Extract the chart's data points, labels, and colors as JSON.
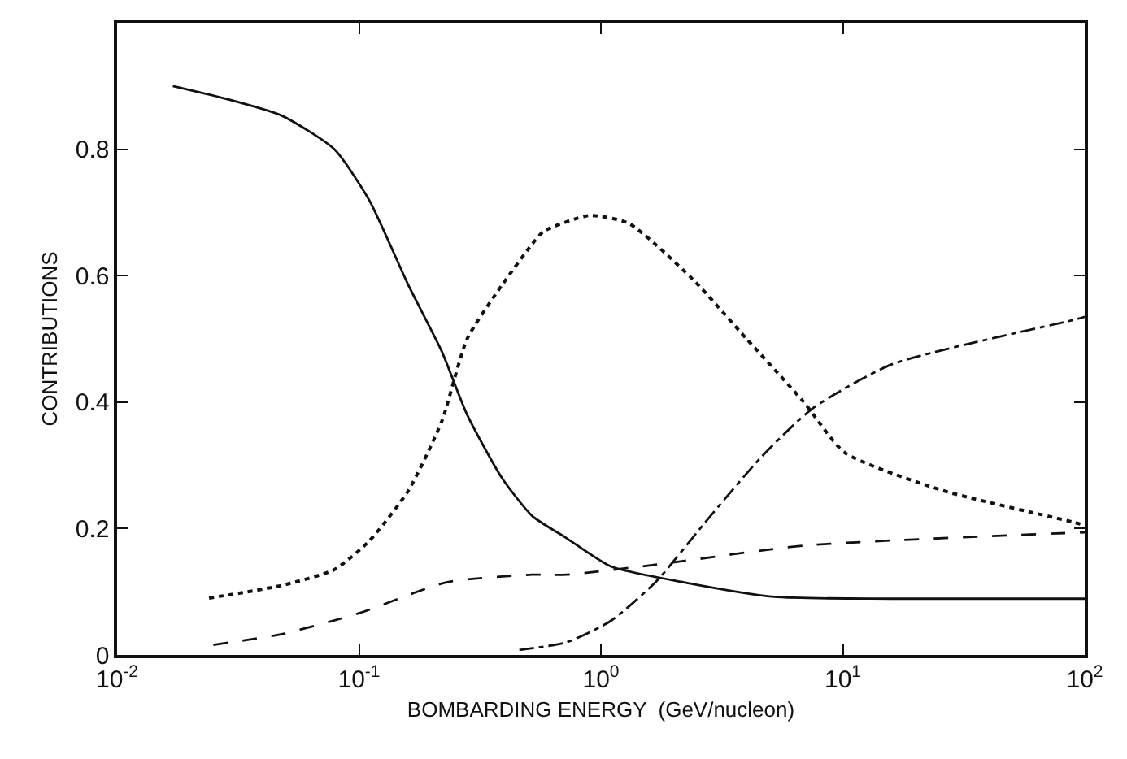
{
  "chart_data": {
    "type": "line",
    "xlabel": "BOMBARDING ENERGY  (GeV/nucleon)",
    "ylabel": "CONTRIBUTIONS",
    "log": "x",
    "marker": "none",
    "xlim": [
      0.01,
      100
    ],
    "xticks": [
      {
        "value": 0.01,
        "label": "10$^{-2}$"
      },
      {
        "value": 0.1,
        "label": "10$^{-1}$"
      },
      {
        "value": 1,
        "label": "10$^{0}$"
      },
      {
        "value": 10,
        "label": "10$^{1}$"
      },
      {
        "value": 100,
        "label": "10$^{2}$"
      }
    ],
    "ylim": [
      0,
      1
    ],
    "yticks": [
      0,
      0.2,
      0.4,
      0.6,
      0.8
    ],
    "series": [
      {
        "color": "#111111",
        "line_style": "solid",
        "x": [
          0.017,
          0.028,
          0.048,
          0.079,
          0.11,
          0.16,
          0.22,
          0.28,
          0.39,
          0.52,
          0.72,
          1.1,
          2.2,
          5.2,
          16,
          100
        ],
        "values": [
          0.9,
          0.88,
          0.853,
          0.8,
          0.72,
          0.585,
          0.48,
          0.38,
          0.28,
          0.22,
          0.185,
          0.14,
          0.115,
          0.092,
          0.089,
          0.089
        ]
      },
      {
        "color": "#111111",
        "line_style": "dotted",
        "x": [
          0.024,
          0.048,
          0.079,
          0.11,
          0.16,
          0.22,
          0.28,
          0.39,
          0.52,
          0.58,
          0.89,
          1.3,
          2.4,
          4.0,
          6.9,
          10.2,
          26,
          90,
          100
        ],
        "values": [
          0.09,
          0.11,
          0.135,
          0.18,
          0.26,
          0.37,
          0.5,
          0.585,
          0.65,
          0.67,
          0.695,
          0.683,
          0.594,
          0.5,
          0.4,
          0.32,
          0.26,
          0.21,
          0.205
        ]
      },
      {
        "color": "#111111",
        "line_style": "dashed",
        "x": [
          0.025,
          0.048,
          0.1,
          0.23,
          0.52,
          0.72,
          1.7,
          6.9,
          100
        ],
        "values": [
          0.016,
          0.033,
          0.066,
          0.115,
          0.127,
          0.127,
          0.143,
          0.173,
          0.194
        ]
      },
      {
        "color": "#111111",
        "line_style": "dashdot",
        "x": [
          0.46,
          0.72,
          1.1,
          1.7,
          2.7,
          4.6,
          7.5,
          16,
          90,
          100
        ],
        "values": [
          0.008,
          0.02,
          0.054,
          0.117,
          0.21,
          0.313,
          0.39,
          0.46,
          0.53,
          0.535
        ]
      }
    ]
  }
}
